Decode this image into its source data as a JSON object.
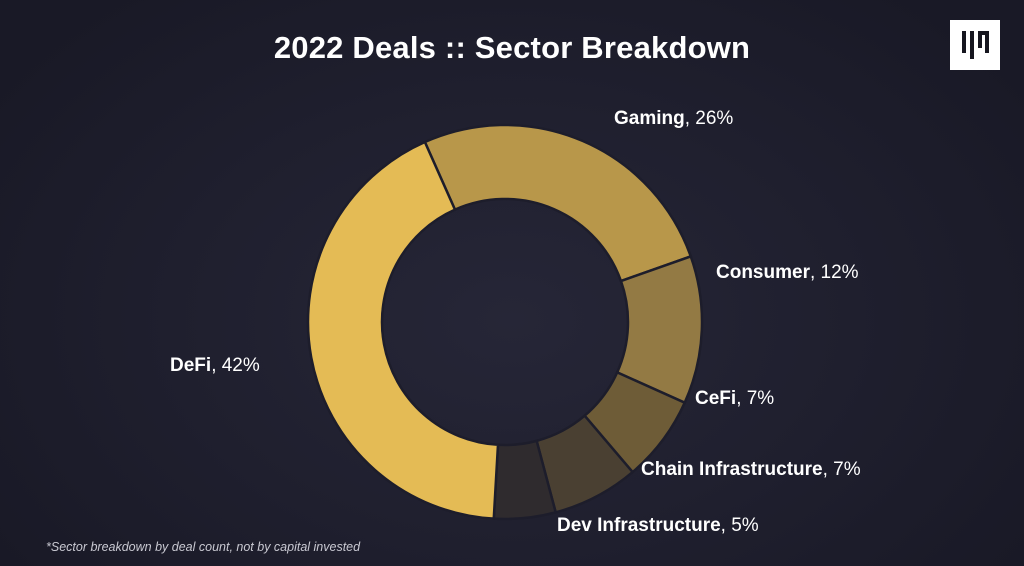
{
  "title": "2022 Deals :: Sector Breakdown",
  "footnote": "*Sector breakdown by deal count, not by capital invested",
  "logo": {
    "icon": "brand-logo-icon"
  },
  "chart_data": {
    "type": "pie",
    "variant": "donut",
    "title": "2022 Deals :: Sector Breakdown",
    "categories": [
      "Gaming",
      "Consumer",
      "CeFi",
      "Chain Infrastructure",
      "Dev Infrastructure",
      "DeFi"
    ],
    "values": [
      26,
      12,
      7,
      7,
      5,
      42
    ],
    "unit": "%",
    "colors": [
      "#b8974a",
      "#937a44",
      "#6e5c37",
      "#4a4032",
      "#2f2b2e",
      "#e4bb55"
    ],
    "labels": {
      "Gaming": {
        "name": "Gaming",
        "value": ", 26%"
      },
      "Consumer": {
        "name": "Consumer",
        "value": ", 12%"
      },
      "CeFi": {
        "name": "CeFi",
        "value": ", 7%"
      },
      "Chain Infrastructure": {
        "name": "Chain Infrastructure",
        "value": ", 7%"
      },
      "Dev Infrastructure": {
        "name": "Dev Infrastructure",
        "value": ", 5%"
      },
      "DeFi": {
        "name": "DeFi",
        "value": ", 42%"
      }
    }
  }
}
